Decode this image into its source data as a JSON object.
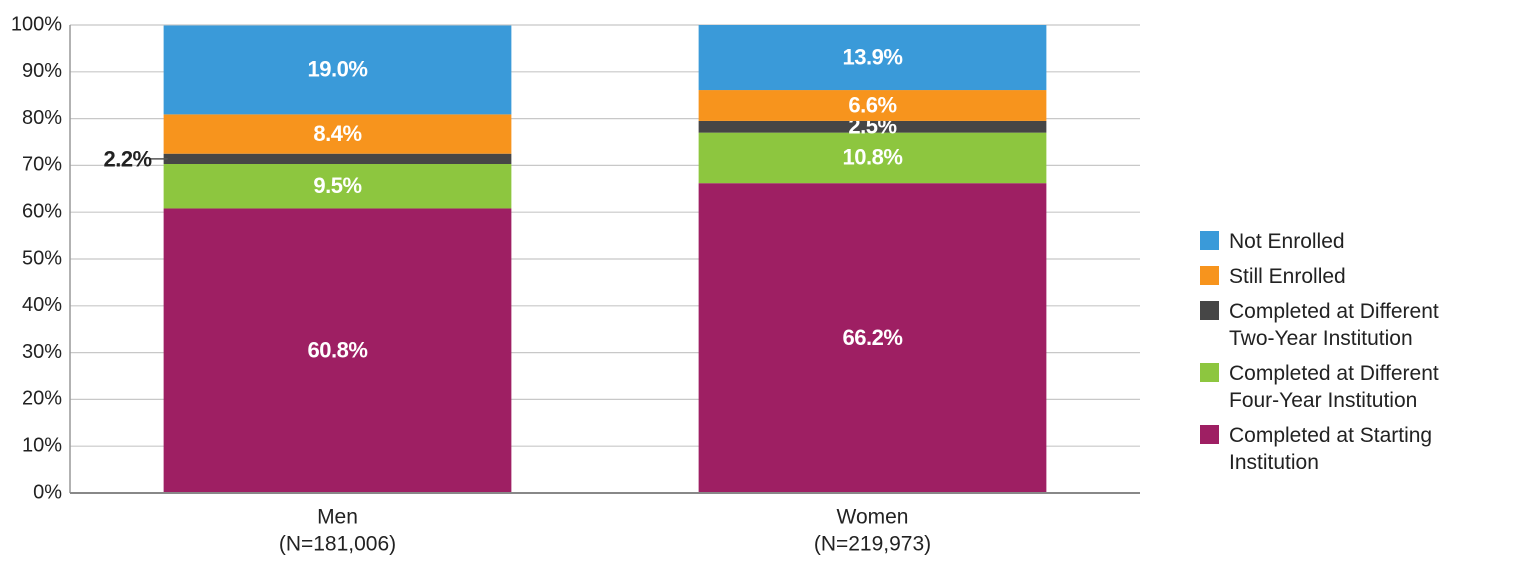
{
  "chart_data": {
    "type": "stacked_bar",
    "categories": [
      "Men",
      "Women"
    ],
    "category_sublabels": [
      "(N=181,006)",
      "(N=219,973)"
    ],
    "series": [
      {
        "name": "Completed at Starting Institution",
        "color": "#9e1f63",
        "values": [
          60.8,
          66.2
        ],
        "value_labels": [
          "60.8%",
          "66.2%"
        ]
      },
      {
        "name": "Completed at Different Four-Year Institution",
        "color": "#8dc63f",
        "values": [
          9.5,
          10.8
        ],
        "value_labels": [
          "9.5%",
          "10.8%"
        ]
      },
      {
        "name": "Completed at Different Two-Year Institution",
        "color": "#464646",
        "values": [
          2.2,
          2.5
        ],
        "value_labels": [
          "2.2%",
          "2.5%"
        ]
      },
      {
        "name": "Still Enrolled",
        "color": "#f7941d",
        "values": [
          8.4,
          6.6
        ],
        "value_labels": [
          "8.4%",
          "6.6%"
        ]
      },
      {
        "name": "Not Enrolled",
        "color": "#3a9ad9",
        "values": [
          19.0,
          13.9
        ],
        "value_labels": [
          "19.0%",
          "13.9%"
        ]
      }
    ],
    "ylim": [
      0,
      100
    ],
    "yticks": [
      {
        "value": 0,
        "label": "0%"
      },
      {
        "value": 10,
        "label": "10%"
      },
      {
        "value": 20,
        "label": "20%"
      },
      {
        "value": 30,
        "label": "30%"
      },
      {
        "value": 40,
        "label": "40%"
      },
      {
        "value": 50,
        "label": "50%"
      },
      {
        "value": 60,
        "label": "60%"
      },
      {
        "value": 70,
        "label": "70%"
      },
      {
        "value": 80,
        "label": "80%"
      },
      {
        "value": 90,
        "label": "90%"
      },
      {
        "value": 100,
        "label": "100%"
      }
    ],
    "grid": true,
    "legend": "right"
  }
}
